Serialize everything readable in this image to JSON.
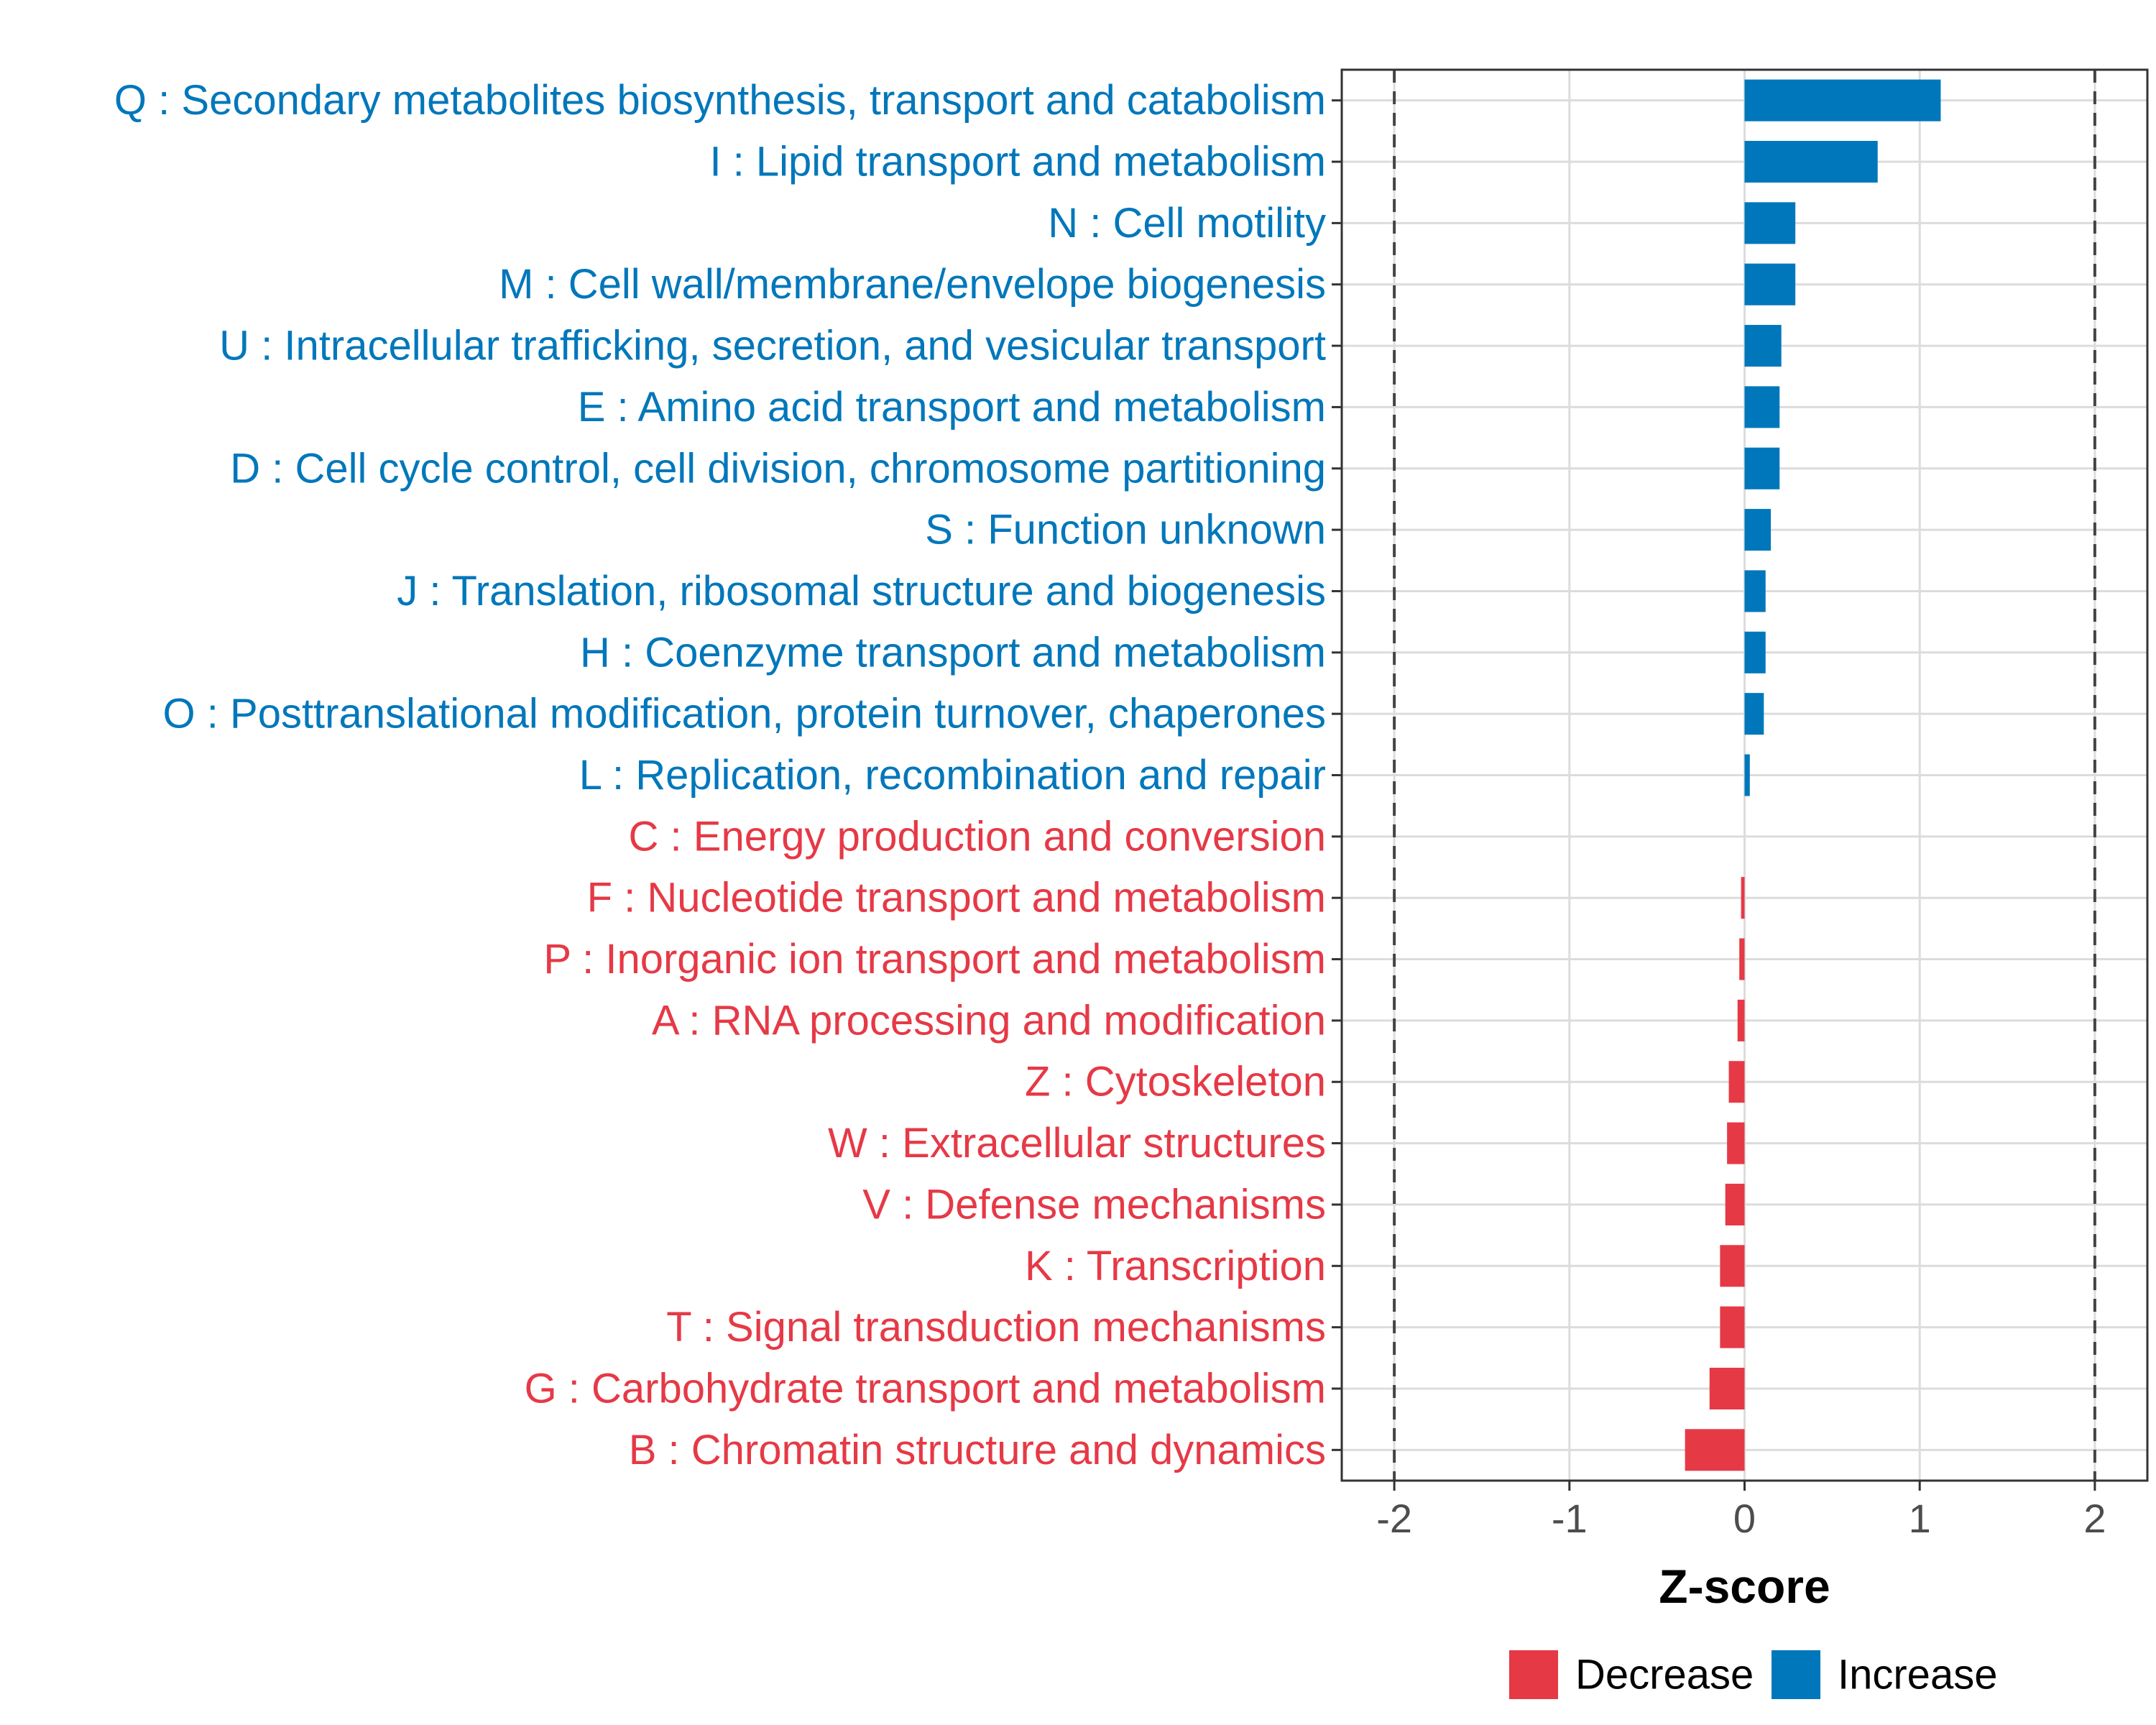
{
  "chart_data": {
    "type": "bar",
    "orientation": "horizontal",
    "xlabel": "Z-score",
    "ylabel": "",
    "xlim": [
      -2.3,
      2.3
    ],
    "xticks": [
      -2,
      -1,
      0,
      1,
      2
    ],
    "xtick_labels": [
      "-2",
      "-1",
      "0",
      "1",
      "2"
    ],
    "reference_lines": [
      -2,
      2
    ],
    "grid": true,
    "legend_position": "bottom",
    "colors": {
      "Decrease": "#e63946",
      "Increase": "#0077bb"
    },
    "legend": [
      {
        "name": "Decrease",
        "color": "#e63946"
      },
      {
        "name": "Increase",
        "color": "#0077bb"
      }
    ],
    "categories": [
      "Q : Secondary metabolites biosynthesis, transport and catabolism",
      "I : Lipid transport and metabolism",
      "N : Cell motility",
      "M : Cell wall/membrane/envelope biogenesis",
      "U : Intracellular trafficking, secretion, and vesicular transport",
      "E : Amino acid transport and metabolism",
      "D : Cell cycle control, cell division, chromosome partitioning",
      "S : Function unknown",
      "J : Translation, ribosomal structure and biogenesis",
      "H : Coenzyme transport and metabolism",
      "O : Posttranslational modification, protein turnover, chaperones",
      "L : Replication, recombination and repair",
      "C : Energy production and conversion",
      "F : Nucleotide transport and metabolism",
      "P : Inorganic ion transport and metabolism",
      "A : RNA processing and modification",
      "Z : Cytoskeleton",
      "W : Extracellular structures",
      "V : Defense mechanisms",
      "K : Transcription",
      "T : Signal transduction mechanisms",
      "G : Carbohydrate transport and metabolism",
      "B : Chromatin structure and dynamics"
    ],
    "values": [
      1.12,
      0.76,
      0.29,
      0.29,
      0.21,
      0.2,
      0.2,
      0.15,
      0.12,
      0.12,
      0.11,
      0.03,
      0.0,
      -0.02,
      -0.03,
      -0.04,
      -0.09,
      -0.1,
      -0.11,
      -0.14,
      -0.14,
      -0.2,
      -0.34
    ],
    "groups": [
      "Increase",
      "Increase",
      "Increase",
      "Increase",
      "Increase",
      "Increase",
      "Increase",
      "Increase",
      "Increase",
      "Increase",
      "Increase",
      "Increase",
      "Decrease",
      "Decrease",
      "Decrease",
      "Decrease",
      "Decrease",
      "Decrease",
      "Decrease",
      "Decrease",
      "Decrease",
      "Decrease",
      "Decrease"
    ]
  }
}
